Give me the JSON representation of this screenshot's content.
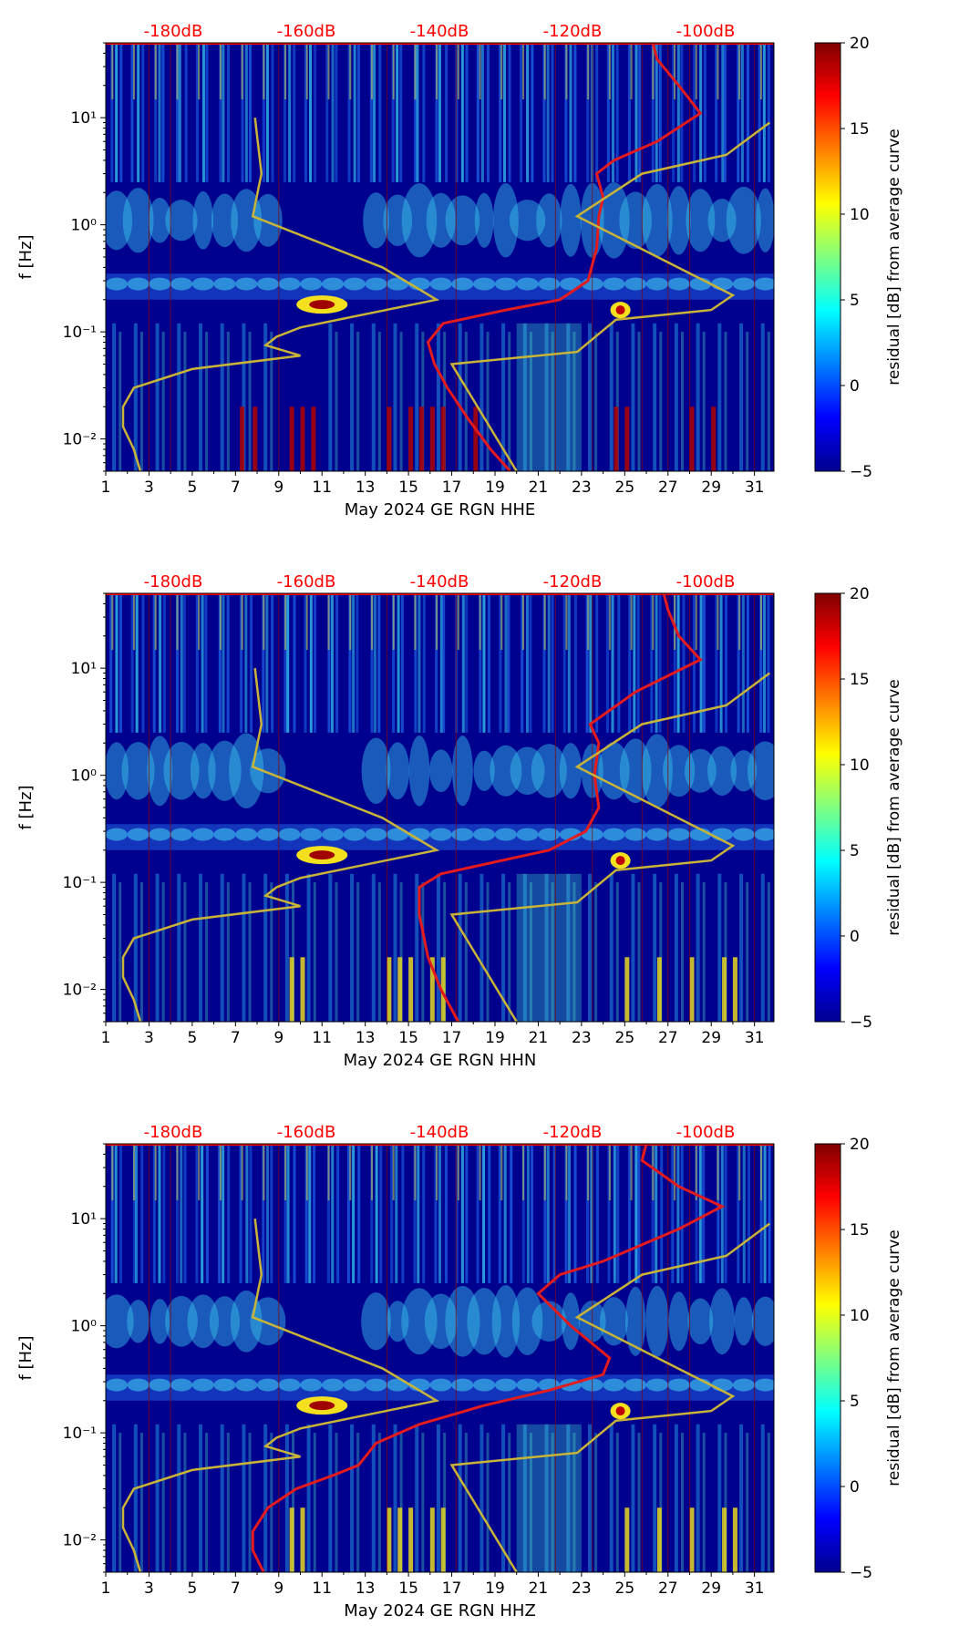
{
  "colors": {
    "red_curve": "#e41a1c",
    "yellow_curve": "#c9b437",
    "db_label": "#ff0000",
    "background_low": "#00008f"
  },
  "chart_data": [
    {
      "type": "heatmap",
      "title": "",
      "xlabel": "May 2024 GE RGN  HHE",
      "ylabel": "f [Hz]",
      "x_ticks": [
        "1",
        "3",
        "5",
        "7",
        "9",
        "11",
        "13",
        "15",
        "17",
        "19",
        "21",
        "23",
        "25",
        "27",
        "29",
        "31"
      ],
      "xlim": [
        1,
        31.9
      ],
      "y_ticks": [
        "10⁻²",
        "10⁻¹",
        "10⁰",
        "10¹"
      ],
      "ylim": [
        0.005,
        50
      ],
      "db_labels": [
        "-180dB",
        "-160dB",
        "-140dB",
        "-120dB",
        "-100dB"
      ],
      "colorbar": {
        "label": "residual [dB] from average curve",
        "ticks": [
          "20",
          "15",
          "10",
          "5",
          "0",
          "−5"
        ],
        "range": [
          -5,
          20
        ]
      },
      "series": [
        {
          "name": "red-curve",
          "points": [
            [
              19.7,
              0.005
            ],
            [
              18.8,
              0.008
            ],
            [
              17.8,
              0.015
            ],
            [
              16.8,
              0.03
            ],
            [
              16.2,
              0.05
            ],
            [
              15.9,
              0.08
            ],
            [
              16.6,
              0.12
            ],
            [
              19.5,
              0.16
            ],
            [
              22.0,
              0.2
            ],
            [
              23.3,
              0.3
            ],
            [
              23.7,
              0.6
            ],
            [
              23.8,
              1.2
            ],
            [
              24.0,
              1.8
            ],
            [
              23.7,
              3.0
            ],
            [
              24.5,
              4.0
            ],
            [
              26.5,
              6.0
            ],
            [
              28.5,
              11.0
            ],
            [
              27.5,
              20.0
            ],
            [
              26.5,
              35.0
            ],
            [
              26.3,
              50.0
            ]
          ]
        },
        {
          "name": "yellow-curve-left",
          "points": [
            [
              2.6,
              0.005
            ],
            [
              2.3,
              0.008
            ],
            [
              1.8,
              0.013
            ],
            [
              1.8,
              0.02
            ],
            [
              2.3,
              0.03
            ],
            [
              5.0,
              0.045
            ],
            [
              10.0,
              0.06
            ],
            [
              8.4,
              0.075
            ],
            [
              8.9,
              0.09
            ],
            [
              10.0,
              0.11
            ],
            [
              16.3,
              0.2
            ],
            [
              13.8,
              0.4
            ],
            [
              7.8,
              1.2
            ],
            [
              8.2,
              3.0
            ],
            [
              7.9,
              10.0
            ]
          ]
        },
        {
          "name": "yellow-curve-right",
          "points": [
            [
              20.0,
              0.005
            ],
            [
              17.0,
              0.05
            ],
            [
              22.8,
              0.065
            ],
            [
              24.6,
              0.13
            ],
            [
              29.0,
              0.16
            ],
            [
              30.0,
              0.22
            ],
            [
              22.8,
              1.2
            ],
            [
              25.8,
              3.0
            ],
            [
              29.7,
              4.5
            ],
            [
              31.7,
              9.0
            ]
          ]
        }
      ]
    },
    {
      "type": "heatmap",
      "title": "",
      "xlabel": "May 2024 GE RGN  HHN",
      "ylabel": "f [Hz]",
      "x_ticks": [
        "1",
        "3",
        "5",
        "7",
        "9",
        "11",
        "13",
        "15",
        "17",
        "19",
        "21",
        "23",
        "25",
        "27",
        "29",
        "31"
      ],
      "xlim": [
        1,
        31.9
      ],
      "y_ticks": [
        "10⁻²",
        "10⁻¹",
        "10⁰",
        "10¹"
      ],
      "ylim": [
        0.005,
        50
      ],
      "db_labels": [
        "-180dB",
        "-160dB",
        "-140dB",
        "-120dB",
        "-100dB"
      ],
      "colorbar": {
        "label": "residual [dB] from average curve",
        "ticks": [
          "20",
          "15",
          "10",
          "5",
          "0",
          "−5"
        ],
        "range": [
          -5,
          20
        ]
      },
      "series": [
        {
          "name": "red-curve",
          "points": [
            [
              17.3,
              0.005
            ],
            [
              16.5,
              0.01
            ],
            [
              15.9,
              0.02
            ],
            [
              15.5,
              0.05
            ],
            [
              15.5,
              0.09
            ],
            [
              16.5,
              0.12
            ],
            [
              21.5,
              0.2
            ],
            [
              23.2,
              0.3
            ],
            [
              23.8,
              0.5
            ],
            [
              23.6,
              1.0
            ],
            [
              23.8,
              2.0
            ],
            [
              23.4,
              3.0
            ],
            [
              25.5,
              6.0
            ],
            [
              28.5,
              12.0
            ],
            [
              27.5,
              20.0
            ],
            [
              27.0,
              35.0
            ],
            [
              26.8,
              50.0
            ]
          ]
        },
        {
          "name": "yellow-curve-left",
          "points": [
            [
              2.6,
              0.005
            ],
            [
              2.3,
              0.008
            ],
            [
              1.8,
              0.013
            ],
            [
              1.8,
              0.02
            ],
            [
              2.3,
              0.03
            ],
            [
              5.0,
              0.045
            ],
            [
              10.0,
              0.06
            ],
            [
              8.4,
              0.075
            ],
            [
              8.9,
              0.09
            ],
            [
              10.0,
              0.11
            ],
            [
              16.3,
              0.2
            ],
            [
              13.8,
              0.4
            ],
            [
              7.8,
              1.2
            ],
            [
              8.2,
              3.0
            ],
            [
              7.9,
              10.0
            ]
          ]
        },
        {
          "name": "yellow-curve-right",
          "points": [
            [
              20.0,
              0.005
            ],
            [
              17.0,
              0.05
            ],
            [
              22.8,
              0.065
            ],
            [
              24.6,
              0.13
            ],
            [
              29.0,
              0.16
            ],
            [
              30.0,
              0.22
            ],
            [
              22.8,
              1.2
            ],
            [
              25.8,
              3.0
            ],
            [
              29.7,
              4.5
            ],
            [
              31.7,
              9.0
            ]
          ]
        }
      ]
    },
    {
      "type": "heatmap",
      "title": "",
      "xlabel": "May 2024 GE RGN  HHZ",
      "ylabel": "f [Hz]",
      "x_ticks": [
        "1",
        "3",
        "5",
        "7",
        "9",
        "11",
        "13",
        "15",
        "17",
        "19",
        "21",
        "23",
        "25",
        "27",
        "29",
        "31"
      ],
      "xlim": [
        1,
        31.9
      ],
      "y_ticks": [
        "10⁻²",
        "10⁻¹",
        "10⁰",
        "10¹"
      ],
      "ylim": [
        0.005,
        50
      ],
      "db_labels": [
        "-180dB",
        "-160dB",
        "-140dB",
        "-120dB",
        "-100dB"
      ],
      "colorbar": {
        "label": "residual [dB] from average curve",
        "ticks": [
          "20",
          "15",
          "10",
          "5",
          "0",
          "−5"
        ],
        "range": [
          -5,
          20
        ]
      },
      "series": [
        {
          "name": "red-curve",
          "points": [
            [
              8.3,
              0.005
            ],
            [
              7.8,
              0.008
            ],
            [
              7.8,
              0.012
            ],
            [
              8.5,
              0.02
            ],
            [
              9.8,
              0.03
            ],
            [
              11.5,
              0.04
            ],
            [
              12.7,
              0.05
            ],
            [
              13.5,
              0.08
            ],
            [
              15.5,
              0.12
            ],
            [
              18.5,
              0.18
            ],
            [
              21.5,
              0.25
            ],
            [
              24.0,
              0.35
            ],
            [
              24.3,
              0.5
            ],
            [
              22.5,
              1.0
            ],
            [
              21.0,
              2.0
            ],
            [
              22.0,
              3.0
            ],
            [
              24.0,
              4.0
            ],
            [
              27.5,
              8.0
            ],
            [
              29.5,
              13.0
            ],
            [
              27.5,
              20.0
            ],
            [
              25.8,
              35.0
            ],
            [
              26.0,
              50.0
            ]
          ]
        },
        {
          "name": "yellow-curve-left",
          "points": [
            [
              2.6,
              0.005
            ],
            [
              2.3,
              0.008
            ],
            [
              1.8,
              0.013
            ],
            [
              1.8,
              0.02
            ],
            [
              2.3,
              0.03
            ],
            [
              5.0,
              0.045
            ],
            [
              10.0,
              0.06
            ],
            [
              8.4,
              0.075
            ],
            [
              8.9,
              0.09
            ],
            [
              10.0,
              0.11
            ],
            [
              16.3,
              0.2
            ],
            [
              13.8,
              0.4
            ],
            [
              7.8,
              1.2
            ],
            [
              8.2,
              3.0
            ],
            [
              7.9,
              10.0
            ]
          ]
        },
        {
          "name": "yellow-curve-right",
          "points": [
            [
              20.0,
              0.005
            ],
            [
              17.0,
              0.05
            ],
            [
              22.8,
              0.065
            ],
            [
              24.6,
              0.13
            ],
            [
              29.0,
              0.16
            ],
            [
              30.0,
              0.22
            ],
            [
              22.8,
              1.2
            ],
            [
              25.8,
              3.0
            ],
            [
              29.7,
              4.5
            ],
            [
              31.7,
              9.0
            ]
          ]
        }
      ]
    }
  ]
}
